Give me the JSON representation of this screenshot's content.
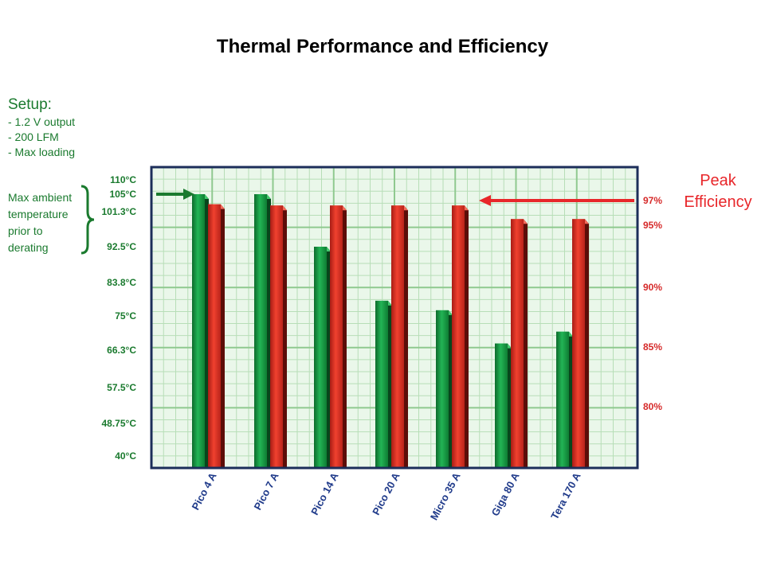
{
  "page": {
    "title": "Thermal Performance and Efficiency"
  },
  "setup": {
    "heading": "Setup:",
    "lines": [
      "- 1.2 V output",
      "- 200 LFM",
      "- Max loading"
    ]
  },
  "derating_note": [
    "Max ambient",
    "temperature",
    "prior to",
    "derating"
  ],
  "peak_label": [
    "Peak",
    "Efficiency"
  ],
  "colors": {
    "temperature": "#1a9a45",
    "efficiency": "#e8332a",
    "grid": "#8fc98f",
    "grid_bg": "#eaf7ea",
    "frame": "#1c2e5a",
    "temp_text": "#1a7a2e",
    "eff_text": "#d62a2a"
  },
  "chart_data": {
    "type": "bar",
    "title": "Thermal Performance and Efficiency",
    "categories": [
      "Pico 4 A",
      "Pico 7 A",
      "Pico 14 A",
      "Pico 20 A",
      "Micro 35 A",
      "Giga 80 A",
      "Tera 170 A"
    ],
    "temperature_axis": {
      "ticks": [
        40,
        48.75,
        57.5,
        66.3,
        75,
        83.8,
        92.5,
        101.3,
        105,
        110
      ],
      "tick_labels": [
        "40°C",
        "48.75°C",
        "57.5°C",
        "66.3°C",
        "75°C",
        "83.8°C",
        "92.5°C",
        "101.3°C",
        "105°C",
        "110°C"
      ],
      "range": [
        40,
        110
      ]
    },
    "efficiency_axis": {
      "ticks": [
        80,
        85,
        90,
        95,
        97
      ],
      "tick_labels": [
        "80%",
        "85%",
        "90%",
        "95%",
        "97%"
      ]
    },
    "series": [
      {
        "name": "Max ambient temperature prior to derating",
        "axis": "temperature",
        "values": [
          105,
          105,
          92.5,
          79,
          76.5,
          68,
          71
        ]
      },
      {
        "name": "Peak Efficiency",
        "axis": "efficiency",
        "values": [
          96.7,
          96.6,
          96.6,
          96.6,
          96.6,
          95.5,
          95.5
        ]
      }
    ],
    "grid": true
  }
}
